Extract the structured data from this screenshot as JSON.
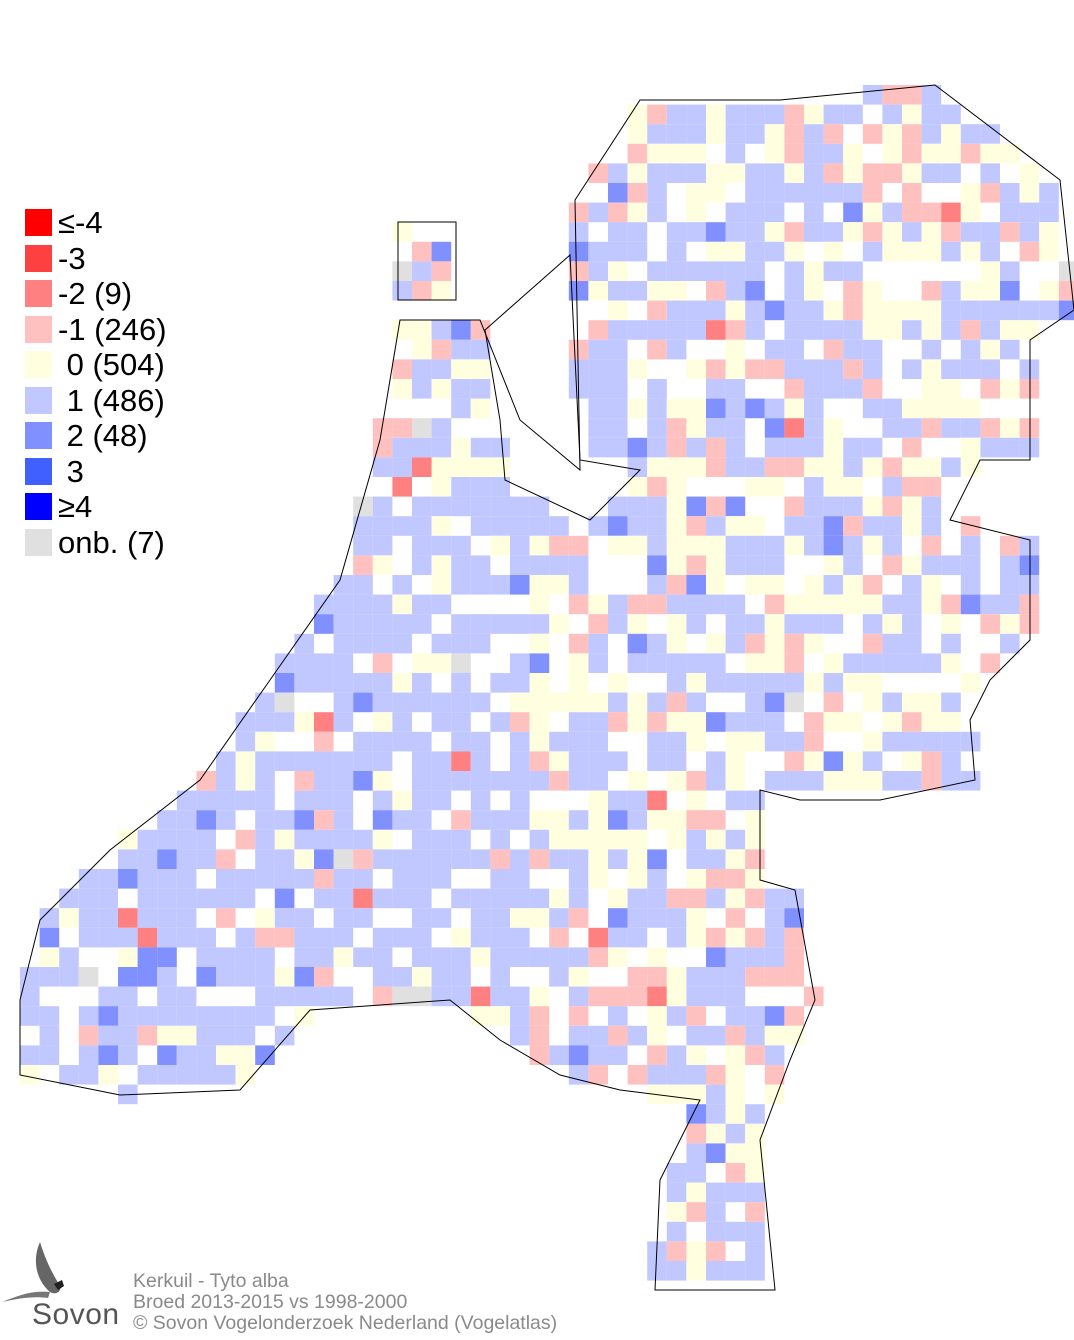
{
  "map": {
    "subject": "Kerkuil - Tyto alba",
    "comparison": "Broed 2013-2015 vs 1998-2000",
    "copyright": "© Sovon Vogelonderzoek Nederland (Vogelatlas)",
    "logo_text": "Sovon"
  },
  "legend": [
    {
      "label": "≤-4",
      "value": -4,
      "color": "#ff0000"
    },
    {
      "label": "-3",
      "value": -3,
      "color": "#ff4040"
    },
    {
      "label": "-2 (9)",
      "value": -2,
      "count": 9,
      "color": "#ff8080"
    },
    {
      "label": "-1 (246)",
      "value": -1,
      "count": 246,
      "color": "#ffc0c0"
    },
    {
      "label": " 0 (504)",
      "value": 0,
      "count": 504,
      "color": "#ffffe0"
    },
    {
      "label": " 1 (486)",
      "value": 1,
      "count": 486,
      "color": "#c0c8ff"
    },
    {
      "label": " 2 (48)",
      "value": 2,
      "count": 48,
      "color": "#8090ff"
    },
    {
      "label": " 3",
      "value": 3,
      "color": "#4060ff"
    },
    {
      "label": "≥4",
      "value": 4,
      "color": "#0000ff"
    },
    {
      "label": "onb. (7)",
      "value": null,
      "count": 7,
      "color": "#e0e0e0"
    }
  ]
}
